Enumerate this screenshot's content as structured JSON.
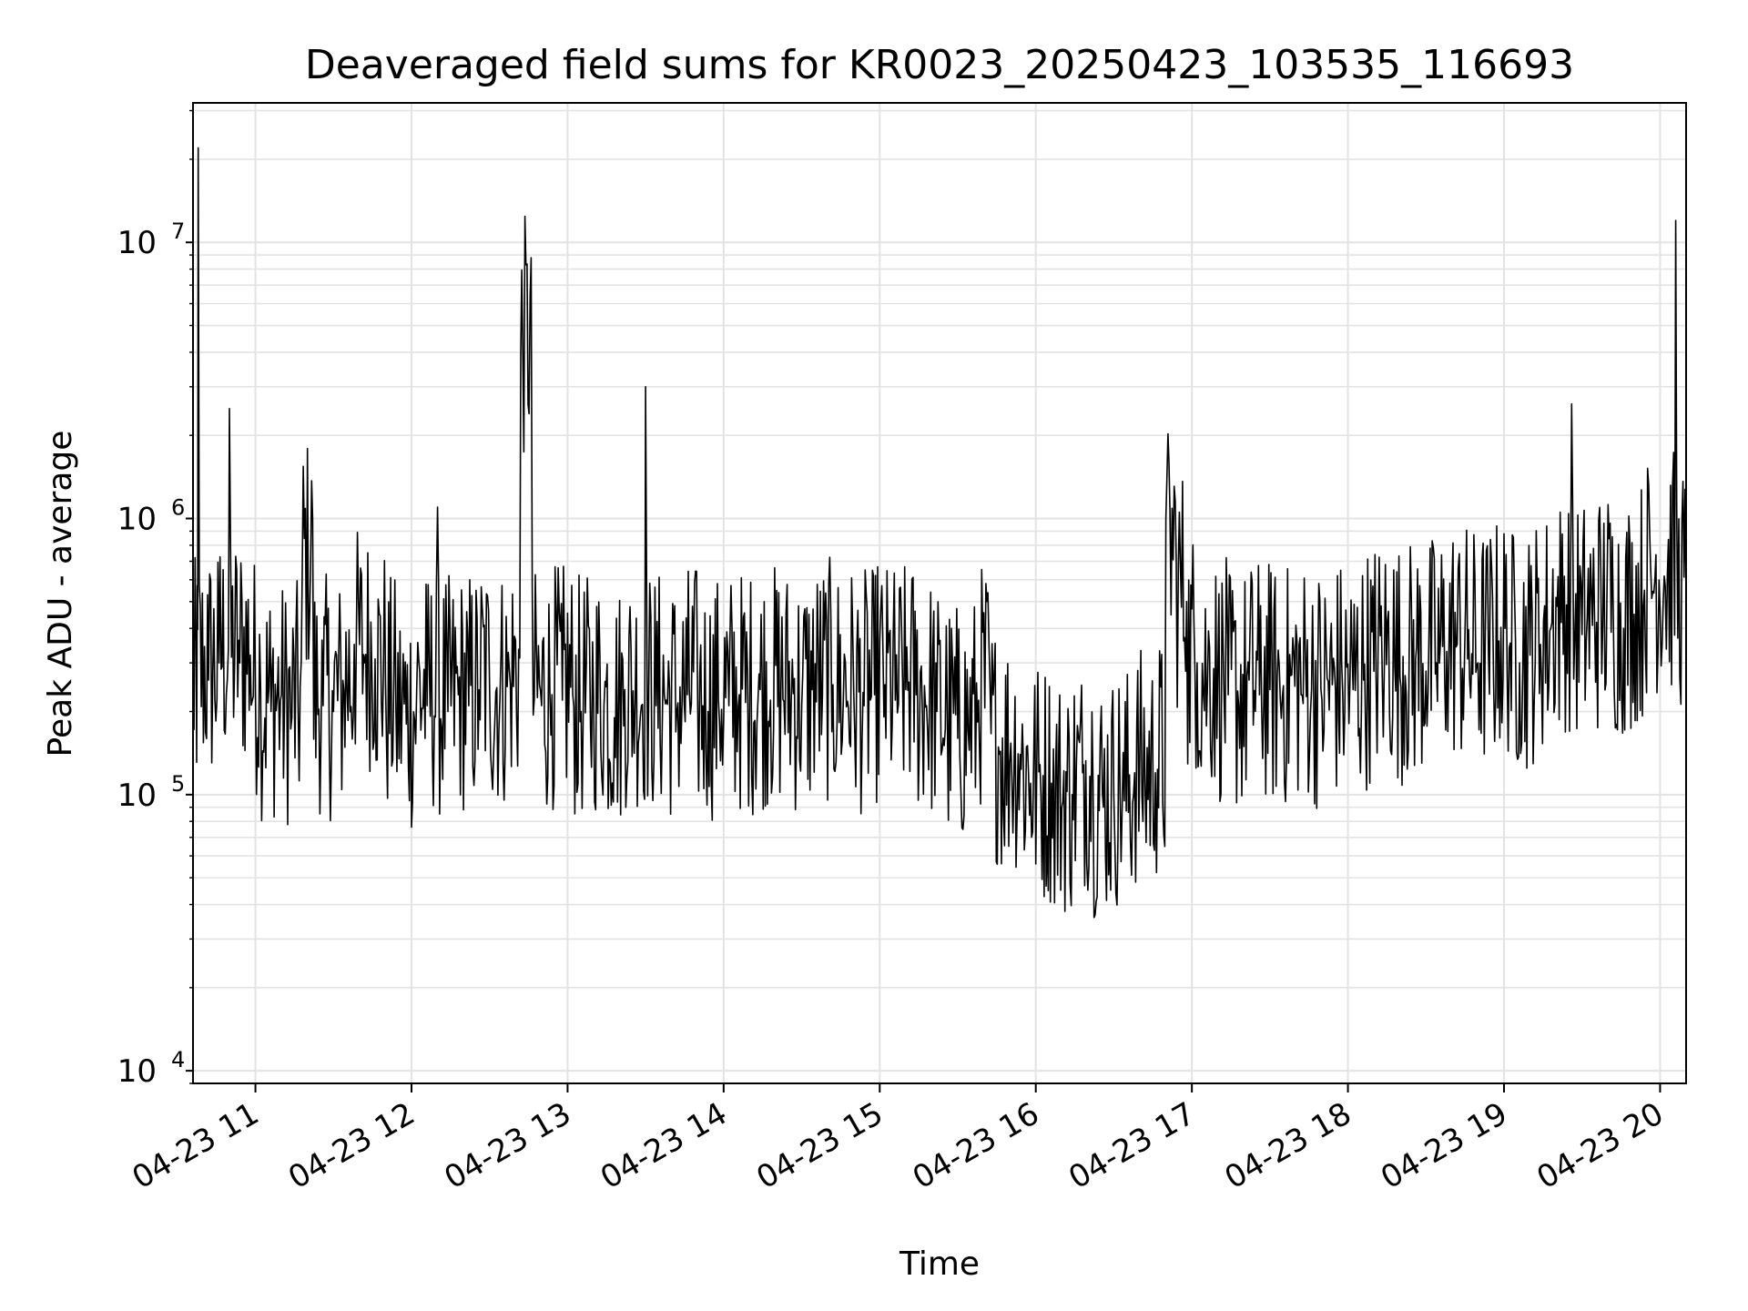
{
  "chart_data": {
    "type": "line",
    "title": "Deaveraged field sums for KR0023_20250423_103535_116693",
    "xlabel": "Time",
    "ylabel": "Peak ADU - average",
    "yscale": "log",
    "grid": true,
    "line_color": "#000000",
    "x_range": [
      "2025-04-23 10:36",
      "2025-04-23 20:10"
    ],
    "ylim": [
      9000,
      32000000
    ],
    "x_ticks": [
      {
        "value": "2025-04-23 11:00",
        "label": "04-23 11"
      },
      {
        "value": "2025-04-23 12:00",
        "label": "04-23 12"
      },
      {
        "value": "2025-04-23 13:00",
        "label": "04-23 13"
      },
      {
        "value": "2025-04-23 14:00",
        "label": "04-23 14"
      },
      {
        "value": "2025-04-23 15:00",
        "label": "04-23 15"
      },
      {
        "value": "2025-04-23 16:00",
        "label": "04-23 16"
      },
      {
        "value": "2025-04-23 17:00",
        "label": "04-23 17"
      },
      {
        "value": "2025-04-23 18:00",
        "label": "04-23 18"
      },
      {
        "value": "2025-04-23 19:00",
        "label": "04-23 19"
      },
      {
        "value": "2025-04-23 20:00",
        "label": "04-23 20"
      }
    ],
    "y_ticks": [
      {
        "value": 10000,
        "base": "10",
        "exp": "4"
      },
      {
        "value": 100000,
        "base": "10",
        "exp": "5"
      },
      {
        "value": 1000000,
        "base": "10",
        "exp": "6"
      },
      {
        "value": 10000000,
        "base": "10",
        "exp": "7"
      }
    ],
    "series": [
      {
        "x": [
          "2025-04-23 10:36",
          "2025-04-23 10:38",
          "2025-04-23 10:42",
          "2025-04-23 10:46",
          "2025-04-23 10:50",
          "2025-04-23 10:54",
          "2025-04-23 10:58",
          "2025-04-23 11:02",
          "2025-04-23 11:06",
          "2025-04-23 11:10",
          "2025-04-23 11:14",
          "2025-04-23 11:18",
          "2025-04-23 11:22",
          "2025-04-23 11:26",
          "2025-04-23 11:30",
          "2025-04-23 11:34",
          "2025-04-23 11:38",
          "2025-04-23 11:42",
          "2025-04-23 11:46",
          "2025-04-23 11:50",
          "2025-04-23 11:54",
          "2025-04-23 11:58",
          "2025-04-23 12:02",
          "2025-04-23 12:06",
          "2025-04-23 12:10",
          "2025-04-23 12:14",
          "2025-04-23 12:18",
          "2025-04-23 12:22",
          "2025-04-23 12:26",
          "2025-04-23 12:30",
          "2025-04-23 12:34",
          "2025-04-23 12:38",
          "2025-04-23 12:42",
          "2025-04-23 12:46",
          "2025-04-23 12:50",
          "2025-04-23 12:54",
          "2025-04-23 12:58",
          "2025-04-23 13:02",
          "2025-04-23 13:06",
          "2025-04-23 13:10",
          "2025-04-23 13:14",
          "2025-04-23 13:18",
          "2025-04-23 13:22",
          "2025-04-23 13:26",
          "2025-04-23 13:30",
          "2025-04-23 13:34",
          "2025-04-23 13:38",
          "2025-04-23 13:42",
          "2025-04-23 13:46",
          "2025-04-23 13:50",
          "2025-04-23 13:54",
          "2025-04-23 13:58",
          "2025-04-23 14:02",
          "2025-04-23 14:06",
          "2025-04-23 14:10",
          "2025-04-23 14:14",
          "2025-04-23 14:18",
          "2025-04-23 14:22",
          "2025-04-23 14:26",
          "2025-04-23 14:30",
          "2025-04-23 14:34",
          "2025-04-23 14:38",
          "2025-04-23 14:42",
          "2025-04-23 14:46",
          "2025-04-23 14:50",
          "2025-04-23 14:54",
          "2025-04-23 14:58",
          "2025-04-23 15:02",
          "2025-04-23 15:06",
          "2025-04-23 15:10",
          "2025-04-23 15:14",
          "2025-04-23 15:18",
          "2025-04-23 15:22",
          "2025-04-23 15:26",
          "2025-04-23 15:30",
          "2025-04-23 15:34",
          "2025-04-23 15:38",
          "2025-04-23 15:42",
          "2025-04-23 15:46",
          "2025-04-23 15:50",
          "2025-04-23 15:54",
          "2025-04-23 15:58",
          "2025-04-23 16:02",
          "2025-04-23 16:06",
          "2025-04-23 16:10",
          "2025-04-23 16:14",
          "2025-04-23 16:18",
          "2025-04-23 16:22",
          "2025-04-23 16:26",
          "2025-04-23 16:30",
          "2025-04-23 16:34",
          "2025-04-23 16:38",
          "2025-04-23 16:42",
          "2025-04-23 16:46",
          "2025-04-23 16:50",
          "2025-04-23 16:54",
          "2025-04-23 16:58",
          "2025-04-23 17:02",
          "2025-04-23 17:06",
          "2025-04-23 17:10",
          "2025-04-23 17:14",
          "2025-04-23 17:18",
          "2025-04-23 17:22",
          "2025-04-23 17:26",
          "2025-04-23 17:30",
          "2025-04-23 17:34",
          "2025-04-23 17:38",
          "2025-04-23 17:42",
          "2025-04-23 17:46",
          "2025-04-23 17:50",
          "2025-04-23 17:54",
          "2025-04-23 17:58",
          "2025-04-23 18:02",
          "2025-04-23 18:06",
          "2025-04-23 18:10",
          "2025-04-23 18:14",
          "2025-04-23 18:18",
          "2025-04-23 18:22",
          "2025-04-23 18:26",
          "2025-04-23 18:30",
          "2025-04-23 18:34",
          "2025-04-23 18:38",
          "2025-04-23 18:42",
          "2025-04-23 18:46",
          "2025-04-23 18:50",
          "2025-04-23 18:54",
          "2025-04-23 18:58",
          "2025-04-23 19:02",
          "2025-04-23 19:06",
          "2025-04-23 19:10",
          "2025-04-23 19:14",
          "2025-04-23 19:18",
          "2025-04-23 19:22",
          "2025-04-23 19:26",
          "2025-04-23 19:30",
          "2025-04-23 19:34",
          "2025-04-23 19:38",
          "2025-04-23 19:42",
          "2025-04-23 19:46",
          "2025-04-23 19:50",
          "2025-04-23 19:54",
          "2025-04-23 19:58",
          "2025-04-23 20:02",
          "2025-04-23 20:06",
          "2025-04-23 20:10"
        ],
        "y": [
          230000,
          22000000,
          260000,
          300000,
          2500000,
          300000,
          320000,
          240000,
          200000,
          230000,
          190000,
          650000,
          1000000,
          210000,
          200000,
          240000,
          350000,
          300000,
          310000,
          260000,
          200000,
          180000,
          240000,
          210000,
          1100000,
          200000,
          230000,
          210000,
          240000,
          250000,
          220000,
          250000,
          4000000,
          8800000,
          210000,
          230000,
          220000,
          230000,
          200000,
          220000,
          210000,
          190000,
          240000,
          220000,
          3000000,
          210000,
          220000,
          200000,
          230000,
          220000,
          200000,
          220000,
          210000,
          230000,
          210000,
          240000,
          220000,
          230000,
          220000,
          210000,
          240000,
          230000,
          250000,
          220000,
          240000,
          210000,
          230000,
          250000,
          220000,
          240000,
          230000,
          210000,
          200000,
          180000,
          160000,
          170000,
          220000,
          350000,
          140000,
          130000,
          140000,
          110000,
          100000,
          110000,
          90000,
          100000,
          120000,
          110000,
          90000,
          100000,
          95000,
          120000,
          110000,
          120000,
          1000000,
          700000,
          500000,
          300000,
          250000,
          280000,
          230000,
          210000,
          260000,
          230000,
          240000,
          220000,
          270000,
          230000,
          240000,
          220000,
          250000,
          230000,
          240000,
          260000,
          280000,
          300000,
          290000,
          270000,
          310000,
          280000,
          300000,
          330000,
          350000,
          310000,
          300000,
          320000,
          360000,
          340000,
          300000,
          320000,
          350000,
          400000,
          420000,
          2600000,
          380000,
          410000,
          430000,
          460000,
          400000,
          450000,
          550000,
          600000,
          570000,
          12000000,
          500000
        ]
      }
    ]
  }
}
